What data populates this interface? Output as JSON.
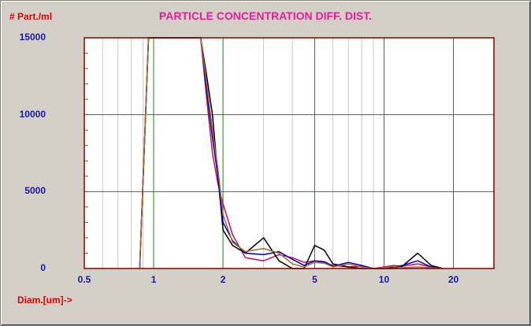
{
  "chart_data": {
    "type": "line",
    "title": "PARTICLE CONCENTRATION DIFF. DIST.",
    "ylabel": "# Part./ml",
    "xlabel": "Diam.[um]->",
    "x_scale": "log",
    "xlim": [
      0.5,
      30
    ],
    "ylim": [
      0,
      15000
    ],
    "x_ticks": [
      0.5,
      1,
      2,
      5,
      10,
      20
    ],
    "x_tick_labels": [
      "0.5",
      "1",
      "2",
      "5",
      "10",
      "20"
    ],
    "y_ticks": [
      0,
      5000,
      10000,
      15000
    ],
    "y_tick_labels": [
      "0",
      "5000",
      "10000",
      "15000"
    ],
    "grid": true,
    "series": [
      {
        "color": "#c0105a",
        "x": [
          0.87,
          0.95,
          1.0,
          1.6,
          1.7,
          1.8,
          1.9,
          2.0,
          2.2,
          2.5,
          3.0,
          3.5,
          4.0,
          4.5,
          5.0,
          5.5,
          6.0,
          7.0,
          8.0,
          9.0,
          10,
          11,
          12,
          14,
          16,
          18
        ],
        "y": [
          0,
          15000,
          15000,
          15000,
          11000,
          7500,
          5500,
          4200,
          2200,
          700,
          500,
          900,
          700,
          400,
          500,
          400,
          200,
          100,
          150,
          0,
          100,
          200,
          150,
          300,
          100,
          0
        ]
      },
      {
        "color": "#000000",
        "x": [
          0.87,
          0.95,
          1.0,
          1.6,
          1.7,
          1.8,
          1.9,
          2.0,
          2.2,
          2.5,
          3.0,
          3.5,
          4.0,
          4.5,
          5.0,
          5.5,
          6.0,
          7.0,
          8.0,
          9.0,
          10,
          11,
          12,
          14,
          16,
          18
        ],
        "y": [
          0,
          15000,
          15000,
          15000,
          12500,
          10000,
          6000,
          2500,
          1500,
          1000,
          2000,
          500,
          0,
          0,
          1500,
          1200,
          300,
          100,
          0,
          0,
          0,
          0,
          150,
          1000,
          200,
          0
        ]
      },
      {
        "color": "#0000c0",
        "x": [
          0.87,
          0.95,
          1.0,
          1.6,
          1.7,
          1.8,
          1.9,
          2.0,
          2.2,
          2.5,
          3.0,
          3.5,
          4.0,
          4.5,
          5.0,
          5.5,
          6.0,
          7.0,
          8.0,
          9.0,
          10,
          11,
          12,
          14,
          16,
          18
        ],
        "y": [
          0,
          15000,
          15000,
          15000,
          11500,
          8500,
          6000,
          3000,
          1800,
          1000,
          900,
          1100,
          600,
          200,
          500,
          450,
          150,
          400,
          200,
          0,
          0,
          100,
          200,
          500,
          100,
          0
        ]
      },
      {
        "color": "#a0702a",
        "x": [
          0.87,
          0.95,
          1.0,
          1.6,
          1.7,
          1.8,
          1.9,
          2.0,
          2.2,
          2.5,
          3.0,
          3.5,
          4.0,
          4.5,
          5.0,
          5.5,
          6.0,
          7.0,
          8.0,
          9.0,
          10,
          11,
          12,
          14,
          16,
          18
        ],
        "y": [
          0,
          15000,
          15000,
          15000,
          12000,
          9000,
          6500,
          3500,
          1700,
          1100,
          1300,
          1000,
          300,
          100,
          400,
          350,
          100,
          300,
          100,
          0,
          50,
          150,
          50,
          100,
          50,
          0
        ]
      }
    ]
  }
}
